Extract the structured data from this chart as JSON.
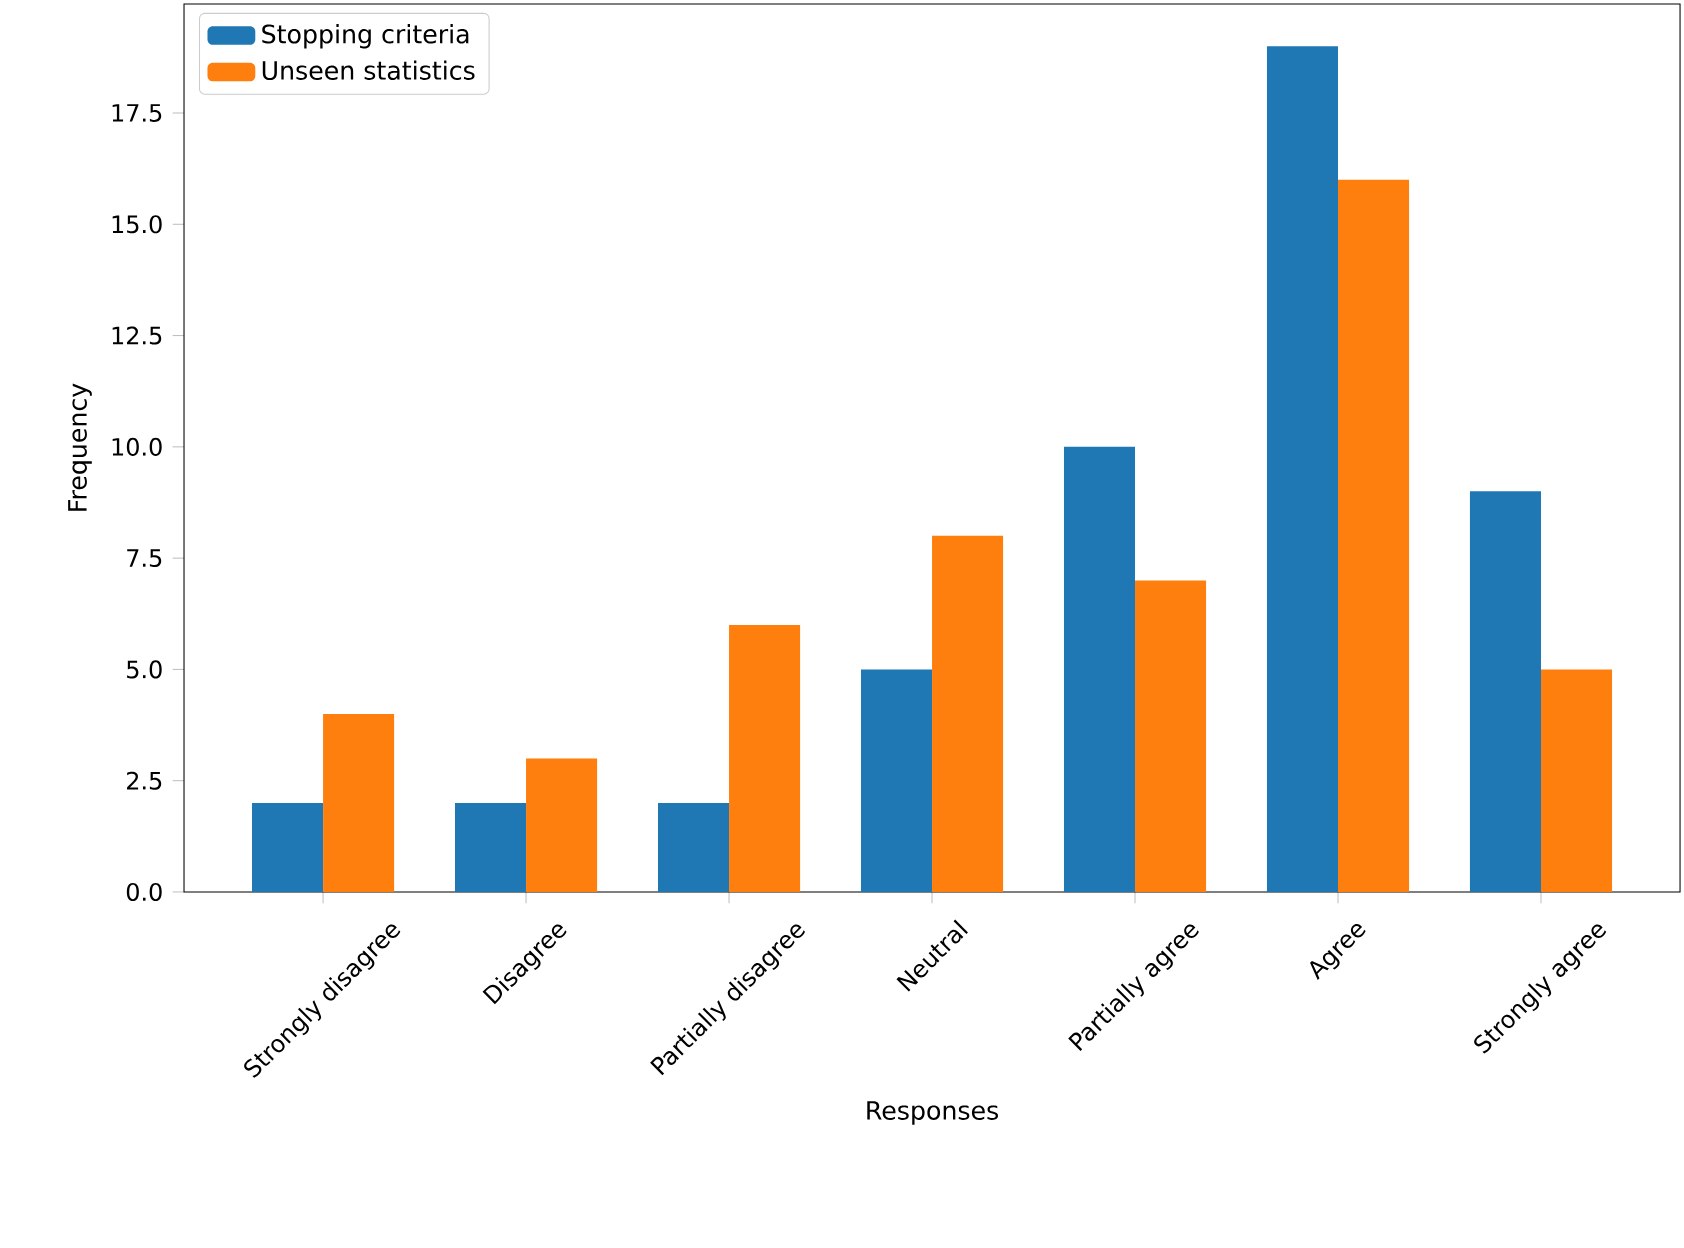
{
  "chart_data": {
    "type": "bar",
    "xlabel": "Responses",
    "ylabel": "Frequency",
    "categories": [
      "Strongly disagree",
      "Disagree",
      "Partially disagree",
      "Neutral",
      "Partially agree",
      "Agree",
      "Strongly agree"
    ],
    "series": [
      {
        "name": "Stopping criteria",
        "color": "#1f77b4",
        "values": [
          2,
          2,
          2,
          5,
          10,
          19,
          9
        ]
      },
      {
        "name": "Unseen statistics",
        "color": "#ff7f0e",
        "values": [
          4,
          3,
          6,
          8,
          7,
          16,
          5
        ]
      }
    ],
    "ylim": [
      0,
      19.95
    ],
    "yticks": [
      {
        "value": 0,
        "label": "0.0"
      },
      {
        "value": 2.5,
        "label": "2.5"
      },
      {
        "value": 5,
        "label": "5.0"
      },
      {
        "value": 7.5,
        "label": "7.5"
      },
      {
        "value": 10,
        "label": "10.0"
      },
      {
        "value": 12.5,
        "label": "12.5"
      },
      {
        "value": 15,
        "label": "15.0"
      },
      {
        "value": 17.5,
        "label": "17.5"
      }
    ],
    "legend": "top left"
  }
}
